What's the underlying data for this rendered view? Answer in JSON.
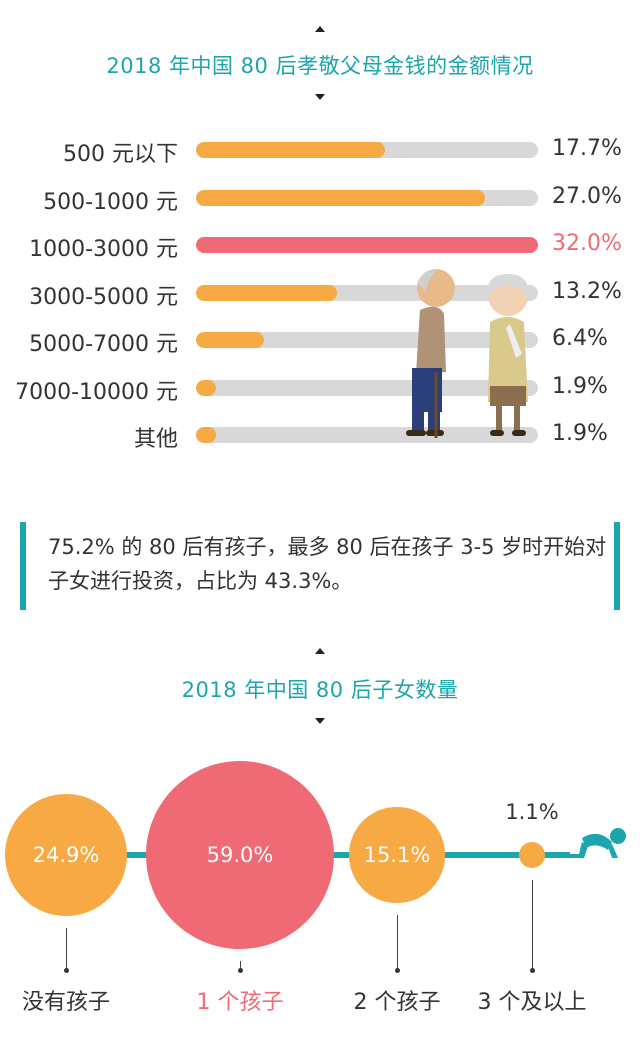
{
  "colors": {
    "accent": "#1ba5ad",
    "orange": "#f7a944",
    "red": "#f06a75",
    "track": "#d8d8d8"
  },
  "chart1": {
    "title": "2018 年中国 80 后孝敬父母金钱的金额情况",
    "highlight_index": 2,
    "chart_data": {
      "type": "bar",
      "categories": [
        "500 元以下",
        "500-1000 元",
        "1000-3000 元",
        "3000-5000 元",
        "5000-7000 元",
        "7000-10000 元",
        "其他"
      ],
      "values": [
        17.7,
        27.0,
        32.0,
        13.2,
        6.4,
        1.9,
        1.9
      ],
      "value_labels": [
        "17.7%",
        "27.0%",
        "32.0%",
        "13.2%",
        "6.4%",
        "1.9%",
        "1.9%"
      ],
      "xlim": [
        0,
        32.0
      ]
    }
  },
  "note": {
    "text": "75.2% 的 80 后有孩子，最多 80 后在孩子 3-5 岁时开始对子女进行投资，占比为 43.3%。"
  },
  "chart2": {
    "title": "2018 年中国 80 后子女数量",
    "highlight_index": 1,
    "chart_data": {
      "type": "bubble",
      "categories": [
        "没有孩子",
        "1 个孩子",
        "2 个孩子",
        "3 个及以上"
      ],
      "values": [
        24.9,
        59.0,
        15.1,
        1.1
      ],
      "value_labels": [
        "24.9%",
        "59.0%",
        "15.1%",
        "1.1%"
      ]
    }
  },
  "icons": [
    "elderly-couple-icon",
    "crawling-baby-icon"
  ]
}
